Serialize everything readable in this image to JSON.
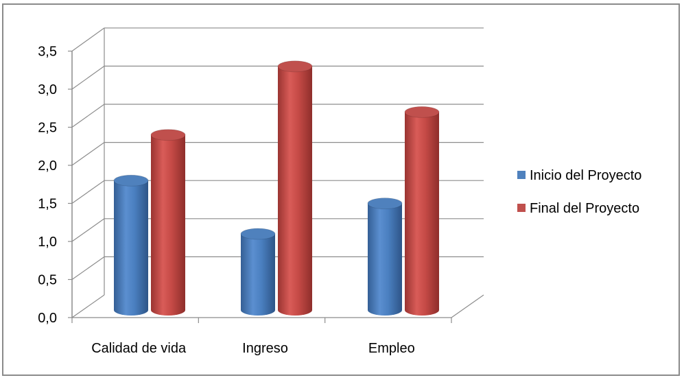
{
  "chart_data": {
    "type": "bar",
    "style": "3d-cylinder",
    "categories": [
      "Calidad de vida",
      "Ingreso",
      "Empleo"
    ],
    "series": [
      {
        "name": "Inicio del Proyecto",
        "color": "#4f81bd",
        "values": [
          1.7,
          1.0,
          1.4
        ]
      },
      {
        "name": "Final del Proyecto",
        "color": "#c0504d",
        "values": [
          2.3,
          3.2,
          2.6
        ]
      }
    ],
    "y_ticks": [
      "0,0",
      "0,5",
      "1,0",
      "1,5",
      "2,0",
      "2,5",
      "3,0",
      "3,5"
    ],
    "ylim": [
      0,
      3.5
    ],
    "grid": true,
    "legend_position": "right",
    "title": "",
    "xlabel": "",
    "ylabel": ""
  }
}
